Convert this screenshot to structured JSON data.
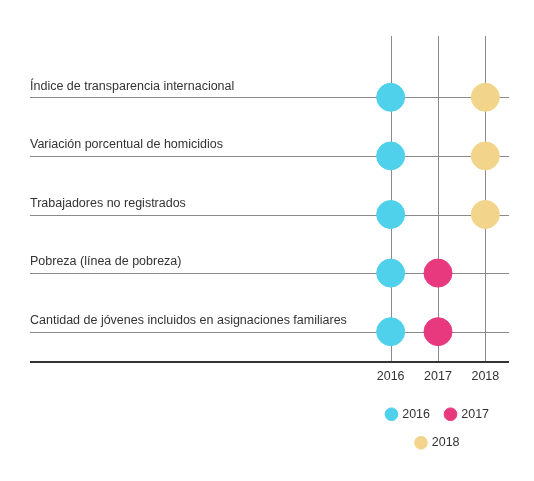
{
  "chart_data": {
    "type": "dot",
    "categories": [
      "Índice de transparencia internacional",
      "Variación porcentual de homicidios",
      "Trabajadores no registrados",
      "Pobreza (línea de pobreza)",
      "Cantidad de jóvenes incluidos en asignaciones familiares"
    ],
    "x": [
      "2016",
      "2017",
      "2018"
    ],
    "series": [
      {
        "name": "2016",
        "color": "#4fd1ec",
        "values": [
          "2016",
          "2016",
          "2016",
          "2016",
          "2016"
        ]
      },
      {
        "name": "2017",
        "color": "#e8397f",
        "values": [
          null,
          null,
          null,
          "2017",
          "2017"
        ]
      },
      {
        "name": "2018",
        "color": "#f2d48a",
        "values": [
          "2018",
          "2018",
          "2018",
          null,
          null
        ]
      }
    ],
    "grid": true,
    "legend": "bottom"
  }
}
